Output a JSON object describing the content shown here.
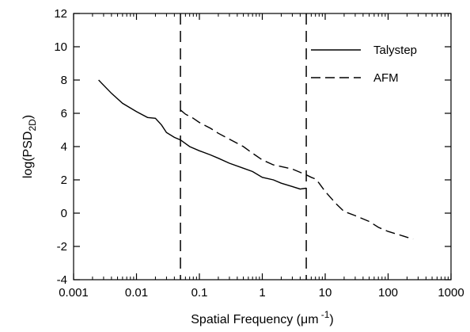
{
  "chart_data": {
    "type": "line",
    "xlabel": "Spatial Frequency (μm⁻¹)",
    "ylabel": "log(PSD2D)",
    "xscale": "log",
    "xlim": [
      0.001,
      1000
    ],
    "ylim": [
      -4,
      12
    ],
    "x_ticks": [
      0.001,
      0.01,
      0.1,
      1,
      10,
      100,
      1000
    ],
    "x_tick_labels": [
      "0.001",
      "0.01",
      "0.1",
      "1",
      "10",
      "100",
      "1000"
    ],
    "y_ticks": [
      -4,
      -2,
      0,
      2,
      4,
      6,
      8,
      10,
      12
    ],
    "y_tick_labels": [
      "-4",
      "-2",
      "0",
      "2",
      "4",
      "6",
      "8",
      "10",
      "12"
    ],
    "grid": false,
    "legend_position": "top-right",
    "series": [
      {
        "name": "Talystep",
        "style": "solid",
        "color": "#000000",
        "x": [
          0.0025,
          0.004,
          0.006,
          0.01,
          0.015,
          0.02,
          0.025,
          0.03,
          0.04,
          0.05,
          0.07,
          0.1,
          0.15,
          0.2,
          0.3,
          0.5,
          0.7,
          1,
          1.5,
          2,
          3,
          4,
          5
        ],
        "y": [
          8.0,
          7.2,
          6.6,
          6.1,
          5.75,
          5.7,
          5.3,
          4.85,
          4.55,
          4.4,
          4.0,
          3.75,
          3.5,
          3.3,
          3.0,
          2.7,
          2.5,
          2.15,
          2.0,
          1.8,
          1.6,
          1.45,
          1.5
        ]
      },
      {
        "name": "AFM",
        "style": "dashed",
        "color": "#000000",
        "x": [
          0.05,
          0.06,
          0.08,
          0.1,
          0.15,
          0.2,
          0.3,
          0.5,
          0.7,
          1,
          1.5,
          2,
          3,
          4,
          5,
          6,
          7,
          8,
          10,
          15,
          20,
          30,
          50,
          70,
          100,
          150,
          200,
          250
        ],
        "y": [
          6.2,
          5.95,
          5.7,
          5.45,
          5.1,
          4.8,
          4.45,
          4.0,
          3.6,
          3.2,
          2.9,
          2.8,
          2.65,
          2.45,
          2.3,
          2.15,
          2.05,
          1.8,
          1.3,
          0.55,
          0.1,
          -0.15,
          -0.5,
          -0.85,
          -1.1,
          -1.3,
          -1.45,
          -1.55
        ]
      }
    ],
    "vertical_lines": [
      {
        "x": 0.05,
        "style": "dashed"
      },
      {
        "x": 5,
        "style": "dashed"
      }
    ]
  }
}
